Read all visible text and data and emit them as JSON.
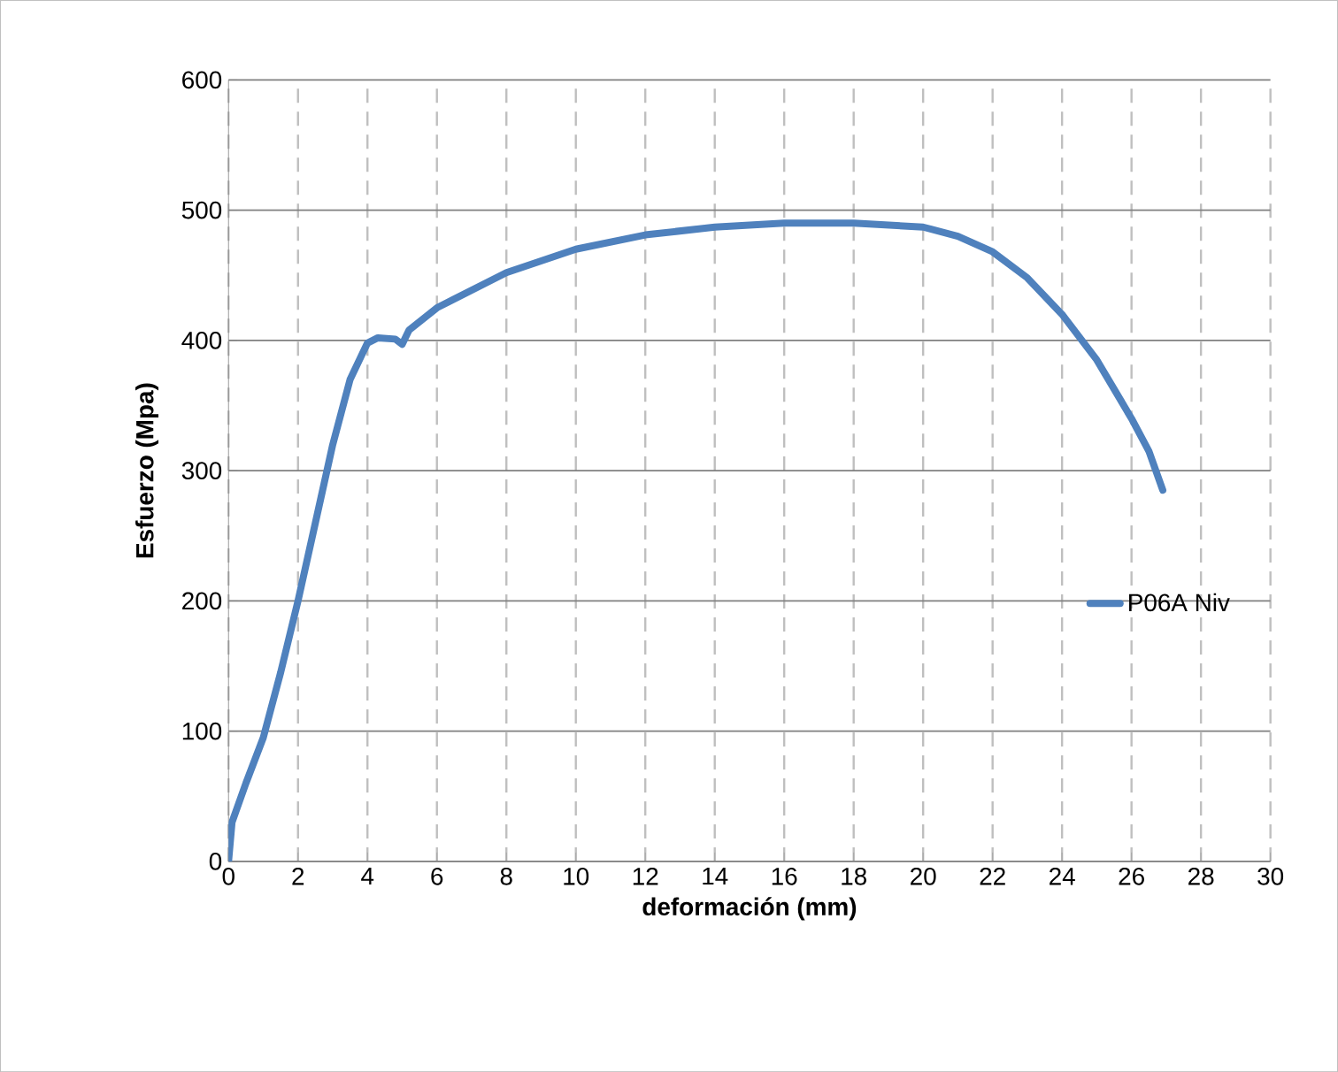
{
  "chart_data": {
    "type": "line",
    "xlabel": "deformación (mm)",
    "ylabel": "Esfuerzo (Mpa)",
    "xlim": [
      0,
      30
    ],
    "xticks": [
      0,
      2,
      4,
      6,
      8,
      10,
      12,
      14,
      16,
      18,
      20,
      22,
      24,
      26,
      28,
      30
    ],
    "ylim": [
      0,
      600
    ],
    "yticks": [
      0,
      100,
      200,
      300,
      400,
      500,
      600
    ],
    "grid": true,
    "legend": "right",
    "marker": "none",
    "line_style": "solid",
    "series": [
      {
        "name": "P06A  Niv",
        "color": "#4f81bd",
        "x": [
          0,
          0.1,
          0.5,
          1,
          1.5,
          2,
          2.5,
          3,
          3.5,
          4,
          4.3,
          4.8,
          5,
          5.2,
          6,
          8,
          10,
          12,
          14,
          16,
          18,
          20,
          21,
          22,
          23,
          24,
          25,
          26,
          26.5,
          26.9
        ],
        "values": [
          0,
          30,
          60,
          95,
          145,
          200,
          260,
          320,
          370,
          398,
          402,
          401,
          397,
          408,
          425,
          452,
          470,
          481,
          487,
          490,
          490,
          487,
          480,
          468,
          448,
          420,
          385,
          340,
          315,
          285
        ]
      }
    ]
  }
}
